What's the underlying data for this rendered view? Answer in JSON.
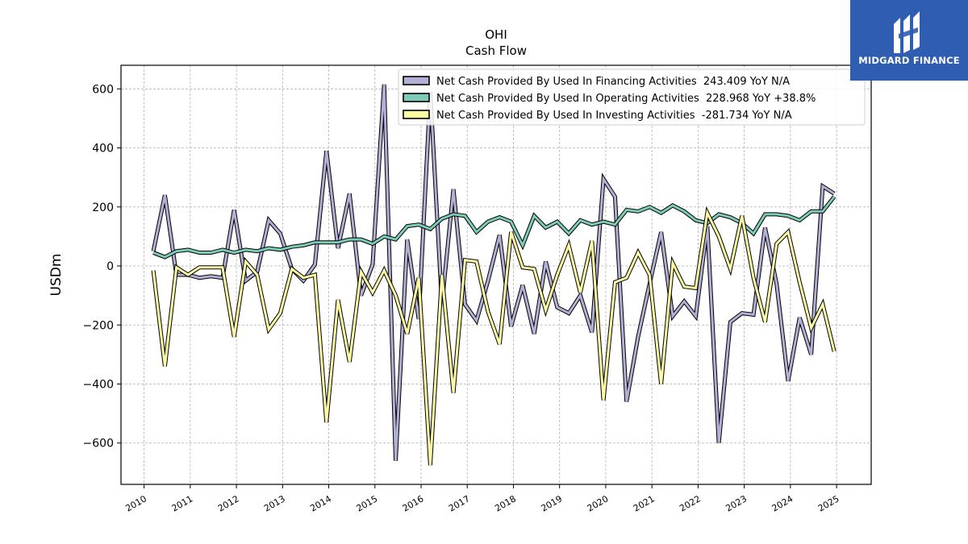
{
  "chart_data": {
    "type": "line",
    "title": "OHI",
    "subtitle": "Cash Flow",
    "xlabel": "",
    "ylabel": "USDm",
    "xlim": [
      2009.5,
      2025.75
    ],
    "ylim": [
      -740,
      680
    ],
    "yticks": [
      600,
      400,
      200,
      0,
      -200,
      -400,
      -600
    ],
    "ytick_labels": [
      "600",
      "400",
      "200",
      "0",
      "−200",
      "−400",
      "−600"
    ],
    "xticks": [
      2010,
      2011,
      2012,
      2013,
      2014,
      2015,
      2016,
      2017,
      2018,
      2019,
      2020,
      2021,
      2022,
      2023,
      2024,
      2025
    ],
    "xtick_labels": [
      "2010",
      "2011",
      "2012",
      "2013",
      "2014",
      "2015",
      "2016",
      "2017",
      "2018",
      "2019",
      "2020",
      "2021",
      "2022",
      "2023",
      "2024",
      "2025"
    ],
    "grid": true,
    "legend_position": "top-right",
    "x": [
      2010.2,
      2010.45,
      2010.7,
      2010.95,
      2011.2,
      2011.45,
      2011.7,
      2011.95,
      2012.2,
      2012.45,
      2012.7,
      2012.95,
      2013.2,
      2013.45,
      2013.7,
      2013.95,
      2014.2,
      2014.45,
      2014.7,
      2014.95,
      2015.2,
      2015.45,
      2015.7,
      2015.95,
      2016.2,
      2016.45,
      2016.7,
      2016.95,
      2017.2,
      2017.45,
      2017.7,
      2017.95,
      2018.2,
      2018.45,
      2018.7,
      2018.95,
      2019.2,
      2019.45,
      2019.7,
      2019.95,
      2020.2,
      2020.45,
      2020.7,
      2020.95,
      2021.2,
      2021.45,
      2021.7,
      2021.95,
      2022.2,
      2022.45,
      2022.7,
      2022.95,
      2023.2,
      2023.45,
      2023.7,
      2023.95,
      2024.2,
      2024.45,
      2024.7,
      2024.95
    ],
    "series": [
      {
        "name": "Net Cash Provided By Used In Financing Activities  243.409 YoY N/A",
        "color": "#b3b0d6",
        "values": [
          50,
          240,
          -30,
          -30,
          -40,
          -35,
          -40,
          190,
          -50,
          -20,
          155,
          110,
          -10,
          -50,
          5,
          390,
          60,
          245,
          -100,
          5,
          615,
          -660,
          90,
          -180,
          590,
          -130,
          260,
          -130,
          -185,
          -50,
          105,
          -205,
          -65,
          -230,
          15,
          -140,
          -160,
          -100,
          -225,
          295,
          235,
          -460,
          -240,
          -60,
          115,
          -170,
          -120,
          -170,
          135,
          -600,
          -190,
          -160,
          -165,
          130,
          -60,
          -390,
          -175,
          -300,
          270,
          245
        ]
      },
      {
        "name": "Net Cash Provided By Used In Operating Activities  228.968 YoY +38.8%",
        "color": "#7ecbb7",
        "values": [
          45,
          30,
          50,
          55,
          45,
          45,
          55,
          45,
          55,
          50,
          60,
          55,
          65,
          70,
          80,
          80,
          80,
          90,
          90,
          75,
          100,
          90,
          135,
          140,
          125,
          160,
          175,
          170,
          115,
          150,
          165,
          150,
          70,
          170,
          130,
          150,
          110,
          155,
          140,
          150,
          140,
          190,
          185,
          200,
          180,
          205,
          185,
          155,
          145,
          175,
          165,
          145,
          110,
          175,
          175,
          170,
          155,
          185,
          185,
          235
        ]
      },
      {
        "name": "Net Cash Provided By Used In Investing Activities  -281.734 YoY N/A",
        "color": "#fdfaa6",
        "values": [
          -15,
          -340,
          -5,
          -30,
          -5,
          -5,
          -5,
          -240,
          15,
          -30,
          -215,
          -160,
          -10,
          -40,
          -30,
          -530,
          -115,
          -325,
          -20,
          -90,
          -15,
          -100,
          -230,
          -40,
          -675,
          -30,
          -430,
          20,
          15,
          -155,
          -265,
          115,
          -5,
          -10,
          -150,
          -30,
          70,
          -90,
          85,
          -455,
          -55,
          -40,
          45,
          -30,
          -400,
          10,
          -70,
          -75,
          180,
          100,
          -10,
          170,
          -40,
          -190,
          75,
          115,
          -55,
          -210,
          -130,
          -290
        ]
      }
    ]
  },
  "logo": {
    "text": "MIDGARD FINANCE"
  }
}
